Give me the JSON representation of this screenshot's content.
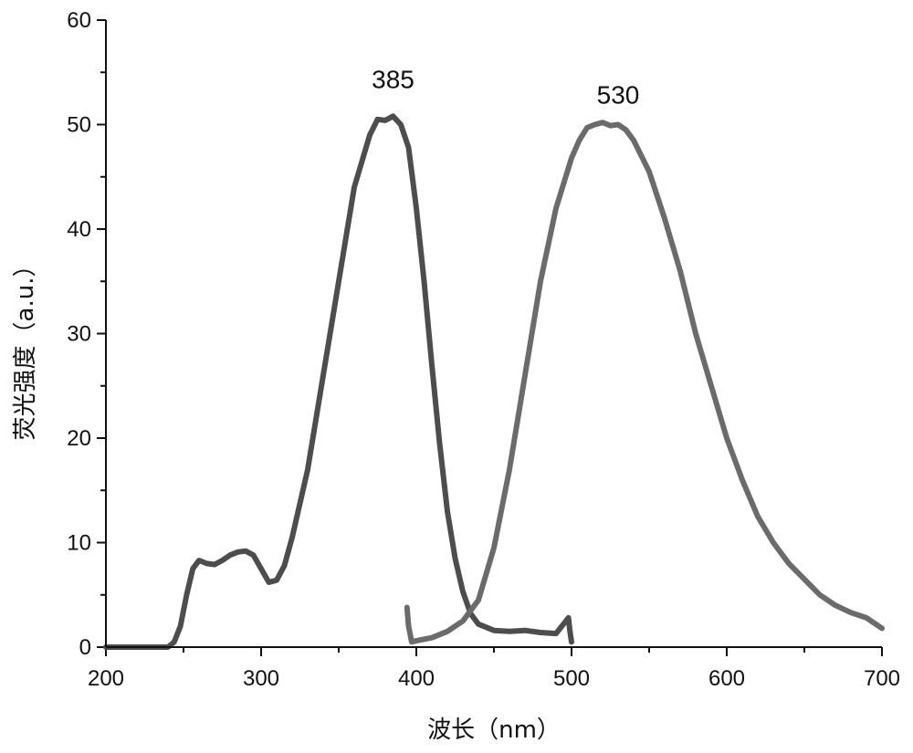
{
  "chart_data": {
    "type": "line",
    "xlabel": "波长（nm）",
    "ylabel": "荧光强度（a.u.）",
    "xlim": [
      200,
      700
    ],
    "ylim": [
      0,
      60
    ],
    "xticks": [
      200,
      300,
      400,
      500,
      600,
      700
    ],
    "yticks": [
      0,
      10,
      20,
      30,
      40,
      50,
      60
    ],
    "grid": false,
    "annotations": [
      {
        "text": "385",
        "x": 385,
        "y": 53.5
      },
      {
        "text": "530",
        "x": 530,
        "y": 52
      }
    ],
    "series": [
      {
        "color": "#4d4d4d",
        "x": [
          200,
          240,
          244,
          248,
          252,
          256,
          260,
          265,
          270,
          275,
          280,
          285,
          290,
          295,
          300,
          305,
          310,
          315,
          320,
          330,
          340,
          350,
          360,
          370,
          375,
          380,
          385,
          390,
          395,
          400,
          405,
          410,
          415,
          420,
          425,
          430,
          435,
          440,
          450,
          460,
          470,
          480,
          490,
          498,
          499,
          500
        ],
        "y": [
          0,
          0,
          0.5,
          2,
          5,
          7.5,
          8.3,
          8.0,
          7.9,
          8.3,
          8.8,
          9.1,
          9.2,
          8.8,
          7.5,
          6.2,
          6.4,
          7.8,
          10.5,
          17,
          26,
          35,
          44,
          49,
          50.5,
          50.4,
          50.8,
          50.0,
          47.8,
          42,
          35,
          27,
          19.5,
          13,
          8.5,
          5.3,
          3.2,
          2.2,
          1.6,
          1.5,
          1.6,
          1.4,
          1.3,
          2.8,
          1.5,
          0.5
        ]
      },
      {
        "color": "#6b6b6b",
        "x": [
          394,
          395,
          397,
          400,
          410,
          420,
          430,
          440,
          450,
          460,
          470,
          480,
          490,
          500,
          505,
          510,
          515,
          520,
          525,
          530,
          535,
          540,
          550,
          560,
          570,
          580,
          590,
          600,
          610,
          620,
          630,
          640,
          650,
          660,
          670,
          680,
          690,
          700
        ],
        "y": [
          3.8,
          2.0,
          0.5,
          0.6,
          0.9,
          1.5,
          2.5,
          4.5,
          9.5,
          17,
          26,
          35,
          42,
          46.8,
          48.5,
          49.7,
          50.0,
          50.2,
          49.9,
          50.0,
          49.5,
          48.5,
          45.5,
          41,
          36,
          30,
          25,
          20,
          16,
          12.5,
          10,
          8,
          6.5,
          5,
          4,
          3.3,
          2.8,
          1.8
        ]
      }
    ]
  }
}
